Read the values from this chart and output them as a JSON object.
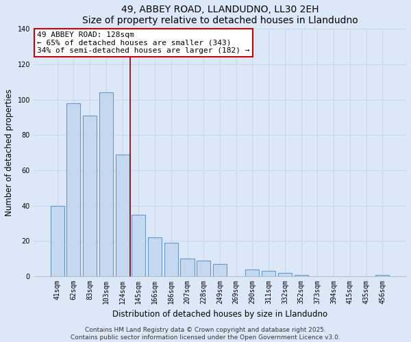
{
  "title": "49, ABBEY ROAD, LLANDUDNO, LL30 2EH",
  "subtitle": "Size of property relative to detached houses in Llandudno",
  "xlabel": "Distribution of detached houses by size in Llandudno",
  "ylabel": "Number of detached properties",
  "bar_labels": [
    "41sqm",
    "62sqm",
    "83sqm",
    "103sqm",
    "124sqm",
    "145sqm",
    "166sqm",
    "186sqm",
    "207sqm",
    "228sqm",
    "249sqm",
    "269sqm",
    "290sqm",
    "311sqm",
    "332sqm",
    "352sqm",
    "373sqm",
    "394sqm",
    "415sqm",
    "435sqm",
    "456sqm"
  ],
  "bar_values": [
    40,
    98,
    91,
    104,
    69,
    35,
    22,
    19,
    10,
    9,
    7,
    0,
    4,
    3,
    2,
    1,
    0,
    0,
    0,
    0,
    1
  ],
  "bar_color": "#c5d8f0",
  "bar_edge_color": "#6699cc",
  "ylim": [
    0,
    140
  ],
  "yticks": [
    0,
    20,
    40,
    60,
    80,
    100,
    120,
    140
  ],
  "vline_x": 4.5,
  "vline_color": "#8b0000",
  "annotation_text_line1": "49 ABBEY ROAD: 128sqm",
  "annotation_text_line2": "← 65% of detached houses are smaller (343)",
  "annotation_text_line3": "34% of semi-detached houses are larger (182) →",
  "footer_line1": "Contains HM Land Registry data © Crown copyright and database right 2025.",
  "footer_line2": "Contains public sector information licensed under the Open Government Licence v3.0.",
  "background_color": "#dce8f8",
  "plot_bg_color": "#dce8f8",
  "grid_color": "#c8d8ec",
  "title_fontsize": 10,
  "subtitle_fontsize": 9,
  "axis_label_fontsize": 8.5,
  "tick_fontsize": 7,
  "annotation_fontsize": 8,
  "footer_fontsize": 6.5
}
